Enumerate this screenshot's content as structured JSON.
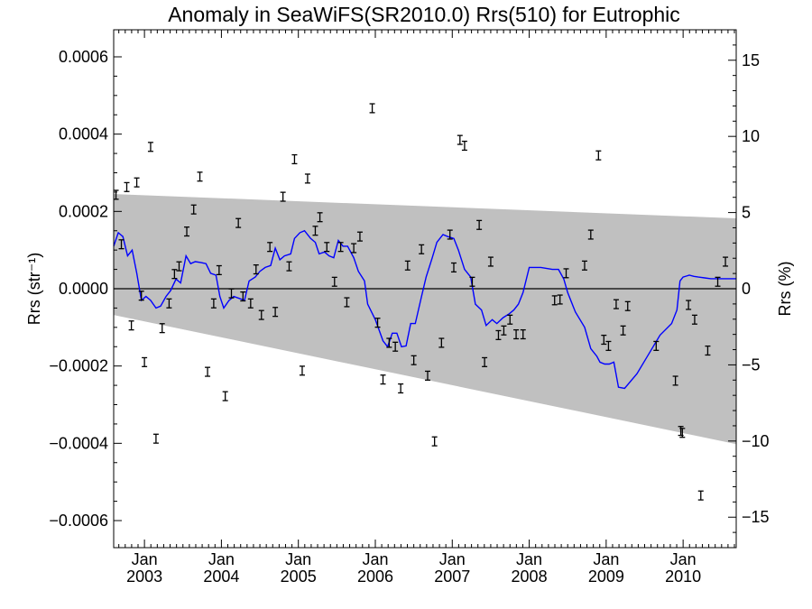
{
  "chart_data": {
    "type": "line",
    "title": "Anomaly in SeaWiFS(SR2010.0) Rrs(510) for Eutrophic",
    "ylabel_left": "Rrs (str⁻¹)",
    "ylabel_right": "Rrs (%)",
    "xlim": [
      2002.6,
      2010.69
    ],
    "ylim_left": [
      -0.00067,
      0.00067
    ],
    "ylim_right": [
      -17.0,
      17.0
    ],
    "left_ticks": [
      {
        "v": 0.0006,
        "label": "0.0006"
      },
      {
        "v": 0.0004,
        "label": "0.0004"
      },
      {
        "v": 0.0002,
        "label": "0.0002"
      },
      {
        "v": 0.0,
        "label": "0.0000"
      },
      {
        "v": -0.0002,
        "label": "−0.0002"
      },
      {
        "v": -0.0004,
        "label": "−0.0004"
      },
      {
        "v": -0.0006,
        "label": "−0.0006"
      }
    ],
    "right_ticks": [
      {
        "v": 15,
        "label": "15"
      },
      {
        "v": 10,
        "label": "10"
      },
      {
        "v": 5,
        "label": "5"
      },
      {
        "v": 0,
        "label": "0"
      },
      {
        "v": -5,
        "label": "−5"
      },
      {
        "v": -10,
        "label": "−10"
      },
      {
        "v": -15,
        "label": "−15"
      }
    ],
    "x_ticks": [
      {
        "v": 2003.0,
        "month": "Jan",
        "year": "2003"
      },
      {
        "v": 2004.0,
        "month": "Jan",
        "year": "2004"
      },
      {
        "v": 2005.0,
        "month": "Jan",
        "year": "2005"
      },
      {
        "v": 2006.0,
        "month": "Jan",
        "year": "2006"
      },
      {
        "v": 2007.0,
        "month": "Jan",
        "year": "2007"
      },
      {
        "v": 2008.0,
        "month": "Jan",
        "year": "2008"
      },
      {
        "v": 2009.0,
        "month": "Jan",
        "year": "2009"
      },
      {
        "v": 2010.0,
        "month": "Jan",
        "year": "2010"
      }
    ],
    "band": {
      "x": [
        2002.6,
        2010.69
      ],
      "upper": [
        0.000245,
        0.000182
      ],
      "lower": [
        -6.8e-05,
        -0.000402
      ]
    },
    "zero_line": 0.0,
    "colors": {
      "band": "#c0c0c0",
      "line": "#0000ff",
      "points": "#000000"
    },
    "series": [
      {
        "kind": "error_bar",
        "points": [
          {
            "x": 2002.63,
            "y": 0.000243
          },
          {
            "x": 2002.7,
            "y": 0.000115
          },
          {
            "x": 2002.77,
            "y": 0.000263
          },
          {
            "x": 2002.83,
            "y": -9.5e-05
          },
          {
            "x": 2002.9,
            "y": 0.000275
          },
          {
            "x": 2002.96,
            "y": -1.8e-05
          },
          {
            "x": 2003.0,
            "y": -0.00019
          },
          {
            "x": 2003.08,
            "y": 0.000367
          },
          {
            "x": 2003.15,
            "y": -0.000388
          },
          {
            "x": 2003.23,
            "y": -0.000102
          },
          {
            "x": 2003.32,
            "y": -3.8e-05
          },
          {
            "x": 2003.39,
            "y": 3.8e-05
          },
          {
            "x": 2003.45,
            "y": 5.8e-05
          },
          {
            "x": 2003.55,
            "y": 0.000148
          },
          {
            "x": 2003.64,
            "y": 0.000205
          },
          {
            "x": 2003.72,
            "y": 0.00029
          },
          {
            "x": 2003.82,
            "y": -0.000215
          },
          {
            "x": 2003.9,
            "y": -3.8e-05
          },
          {
            "x": 2003.97,
            "y": 4.8e-05
          },
          {
            "x": 2004.05,
            "y": -0.000278
          },
          {
            "x": 2004.13,
            "y": -1.2e-05
          },
          {
            "x": 2004.22,
            "y": 0.00017
          },
          {
            "x": 2004.28,
            "y": -2e-05
          },
          {
            "x": 2004.38,
            "y": -3.8e-05
          },
          {
            "x": 2004.45,
            "y": 5e-05
          },
          {
            "x": 2004.52,
            "y": -6.8e-05
          },
          {
            "x": 2004.63,
            "y": 0.000108
          },
          {
            "x": 2004.7,
            "y": -6e-05
          },
          {
            "x": 2004.8,
            "y": 0.000238
          },
          {
            "x": 2004.88,
            "y": 5.8e-05
          },
          {
            "x": 2004.95,
            "y": 0.000335
          },
          {
            "x": 2005.05,
            "y": -0.000212
          },
          {
            "x": 2005.12,
            "y": 0.000285
          },
          {
            "x": 2005.22,
            "y": 0.00015
          },
          {
            "x": 2005.28,
            "y": 0.000185
          },
          {
            "x": 2005.37,
            "y": 0.000108
          },
          {
            "x": 2005.47,
            "y": 1.8e-05
          },
          {
            "x": 2005.55,
            "y": 0.000108
          },
          {
            "x": 2005.63,
            "y": -3.5e-05
          },
          {
            "x": 2005.72,
            "y": 0.000105
          },
          {
            "x": 2005.8,
            "y": 0.000135
          },
          {
            "x": 2005.96,
            "y": 0.000467
          },
          {
            "x": 2006.03,
            "y": -8.8e-05
          },
          {
            "x": 2006.1,
            "y": -0.000235
          },
          {
            "x": 2006.18,
            "y": -0.00014
          },
          {
            "x": 2006.26,
            "y": -0.00015
          },
          {
            "x": 2006.33,
            "y": -0.000258
          },
          {
            "x": 2006.42,
            "y": 6e-05
          },
          {
            "x": 2006.5,
            "y": -0.000185
          },
          {
            "x": 2006.6,
            "y": 0.000102
          },
          {
            "x": 2006.68,
            "y": -0.000225
          },
          {
            "x": 2006.77,
            "y": -0.000395
          },
          {
            "x": 2006.86,
            "y": -0.00014
          },
          {
            "x": 2006.97,
            "y": 0.00014
          },
          {
            "x": 2007.02,
            "y": 5.5e-05
          },
          {
            "x": 2007.1,
            "y": 0.000385
          },
          {
            "x": 2007.16,
            "y": 0.00037
          },
          {
            "x": 2007.26,
            "y": 1.8e-05
          },
          {
            "x": 2007.35,
            "y": 0.000165
          },
          {
            "x": 2007.42,
            "y": -0.00019
          },
          {
            "x": 2007.5,
            "y": 7e-05
          },
          {
            "x": 2007.6,
            "y": -0.00012
          },
          {
            "x": 2007.67,
            "y": -0.000108
          },
          {
            "x": 2007.75,
            "y": -8e-05
          },
          {
            "x": 2007.83,
            "y": -0.000118
          },
          {
            "x": 2007.92,
            "y": -0.000118
          },
          {
            "x": 2008.33,
            "y": -3e-05
          },
          {
            "x": 2008.4,
            "y": -2.8e-05
          },
          {
            "x": 2008.48,
            "y": 4e-05
          },
          {
            "x": 2008.72,
            "y": 6e-05
          },
          {
            "x": 2008.8,
            "y": 0.00014
          },
          {
            "x": 2008.9,
            "y": 0.000345
          },
          {
            "x": 2008.97,
            "y": -0.000132
          },
          {
            "x": 2009.03,
            "y": -0.000148
          },
          {
            "x": 2009.13,
            "y": -4e-05
          },
          {
            "x": 2009.22,
            "y": -0.000108
          },
          {
            "x": 2009.28,
            "y": -4.5e-05
          },
          {
            "x": 2009.65,
            "y": -0.000148
          },
          {
            "x": 2009.9,
            "y": -0.000238
          },
          {
            "x": 2009.97,
            "y": -0.000368
          },
          {
            "x": 2009.99,
            "y": -0.000373
          },
          {
            "x": 2010.07,
            "y": -4.2e-05
          },
          {
            "x": 2010.15,
            "y": -8e-05
          },
          {
            "x": 2010.23,
            "y": -0.000535
          },
          {
            "x": 2010.32,
            "y": -0.00016
          },
          {
            "x": 2010.45,
            "y": 1.8e-05
          },
          {
            "x": 2010.55,
            "y": 7e-05
          }
        ]
      },
      {
        "kind": "smoothed_line",
        "x": [
          2002.6,
          2002.66,
          2002.72,
          2002.78,
          2002.84,
          2002.9,
          2002.96,
          2003.02,
          2003.08,
          2003.15,
          2003.21,
          2003.28,
          2003.34,
          2003.41,
          2003.47,
          2003.54,
          2003.6,
          2003.66,
          2003.73,
          2003.8,
          2003.86,
          2003.93,
          2003.98,
          2004.03,
          2004.1,
          2004.16,
          2004.23,
          2004.3,
          2004.36,
          2004.44,
          2004.5,
          2004.57,
          2004.64,
          2004.7,
          2004.76,
          2004.82,
          2004.9,
          2004.95,
          2005.02,
          2005.08,
          2005.16,
          2005.22,
          2005.27,
          2005.34,
          2005.4,
          2005.46,
          2005.52,
          2005.58,
          2005.64,
          2005.72,
          2005.78,
          2005.86,
          2005.9,
          2006.0,
          2006.1,
          2006.16,
          2006.22,
          2006.28,
          2006.34,
          2006.4,
          2006.46,
          2006.52,
          2006.6,
          2006.66,
          2006.74,
          2006.8,
          2006.88,
          2006.94,
          2007.02,
          2007.08,
          2007.16,
          2007.24,
          2007.3,
          2007.38,
          2007.44,
          2007.52,
          2007.58,
          2007.66,
          2007.74,
          2007.8,
          2007.86,
          2007.92,
          2008.0,
          2008.15,
          2008.3,
          2008.38,
          2008.45,
          2008.5,
          2008.6,
          2008.72,
          2008.8,
          2008.88,
          2008.92,
          2008.98,
          2009.04,
          2009.1,
          2009.16,
          2009.24,
          2009.4,
          2009.55,
          2009.7,
          2009.85,
          2009.92,
          2009.96,
          2010.0,
          2010.08,
          2010.14,
          2010.2,
          2010.28,
          2010.36,
          2010.44,
          2010.54,
          2010.62,
          2010.69
        ],
        "y": [
          0.00011,
          0.000145,
          0.000135,
          8.5e-05,
          0.0001,
          4e-05,
          -3e-05,
          -2e-05,
          -3e-05,
          -5e-05,
          -4.5e-05,
          -2e-05,
          -5e-06,
          2.5e-05,
          1.5e-05,
          8.5e-05,
          6.5e-05,
          7e-05,
          6.8e-05,
          6.5e-05,
          4e-05,
          3.5e-05,
          -2e-05,
          -5e-05,
          -3e-05,
          -2e-05,
          -2.5e-05,
          -3e-05,
          2e-05,
          3e-05,
          4.5e-05,
          5.5e-05,
          6e-05,
          0.000105,
          7.5e-05,
          8.5e-05,
          9e-05,
          0.00013,
          0.000145,
          0.00015,
          0.00013,
          0.00012,
          9e-05,
          9.5e-05,
          8.5e-05,
          8e-05,
          0.000125,
          0.00011,
          0.00011,
          8e-05,
          4.5e-05,
          2e-05,
          -4e-05,
          -8e-05,
          -0.000135,
          -0.00015,
          -0.000115,
          -0.000115,
          -0.00015,
          -0.000148,
          -9e-05,
          -9e-05,
          -2e-05,
          3e-05,
          8e-05,
          0.00012,
          0.00014,
          0.000135,
          0.00013,
          0.0001,
          5e-05,
          3e-05,
          -4e-05,
          -5.5e-05,
          -9.5e-05,
          -8e-05,
          -9e-05,
          -7.5e-05,
          -6.5e-05,
          -5.5e-05,
          -4e-05,
          -1e-05,
          5.5e-05,
          5.5e-05,
          5e-05,
          5e-05,
          2.5e-05,
          -1e-05,
          -6e-05,
          -0.0001,
          -0.000155,
          -0.000175,
          -0.00019,
          -0.000195,
          -0.000195,
          -0.00019,
          -0.000255,
          -0.000258,
          -0.00022,
          -0.00017,
          -0.00012,
          -9e-05,
          -5.5e-05,
          2e-05,
          3e-05,
          3.5e-05,
          3.2e-05,
          3e-05,
          2.8e-05,
          2.6e-05,
          2.6e-05,
          2.6e-05,
          2.6e-05,
          2.6e-05
        ]
      }
    ]
  }
}
